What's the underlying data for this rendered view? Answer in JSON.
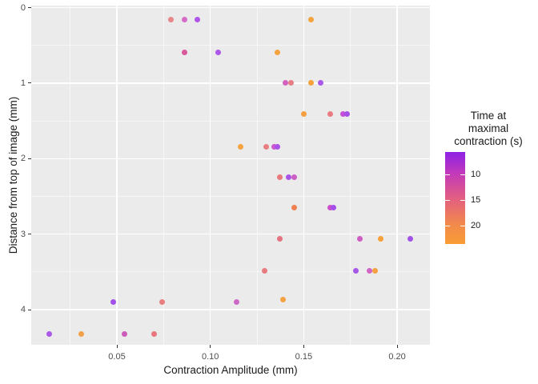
{
  "chart_data": {
    "type": "scatter",
    "title": "",
    "xlabel": "Contraction Amplitude (mm)",
    "ylabel": "Distance from top of image (mm)",
    "x_ticks": [
      0.05,
      0.1,
      0.15,
      0.2
    ],
    "x_tick_labels": [
      "0.05",
      "0.10",
      "0.15",
      "0.20"
    ],
    "x_minor_ticks": [
      0.025,
      0.075,
      0.125,
      0.175
    ],
    "y_ticks": [
      0,
      1,
      2,
      3,
      4
    ],
    "y_tick_labels": [
      "0",
      "1",
      "2",
      "3",
      "4"
    ],
    "y_minor_ticks": [
      0.5,
      1.5,
      2.5,
      3.5
    ],
    "xlim": [
      0.004,
      0.2175
    ],
    "ylim": [
      -0.03,
      4.47
    ],
    "y_axis_reversed": true,
    "grid": {
      "major": true,
      "minor": true
    },
    "legend_position": "right",
    "panel_background": "#ebebeb",
    "gridline_color": "#ffffff",
    "color_scale": {
      "title_lines": [
        "Time at",
        "maximal",
        "contraction (s)"
      ],
      "tick_values": [
        10,
        15,
        20
      ],
      "tick_labels": [
        "10",
        "15",
        "20"
      ],
      "domain": [
        5.6,
        23.6
      ],
      "gradient_stops": [
        {
          "pos": 0.0,
          "color": "#8e22e6"
        },
        {
          "pos": 0.24,
          "color": "#c43ab8"
        },
        {
          "pos": 0.52,
          "color": "#e4617e"
        },
        {
          "pos": 0.8,
          "color": "#f28b49"
        },
        {
          "pos": 1.0,
          "color": "#f99c35"
        }
      ]
    },
    "points": [
      {
        "x": 0.079,
        "y": 0.16,
        "time_s": 16,
        "color": "#e8868a"
      },
      {
        "x": 0.086,
        "y": 0.16,
        "time_s": 11,
        "color": "#d46cc8"
      },
      {
        "x": 0.093,
        "y": 0.16,
        "time_s": 8,
        "color": "#af55e8"
      },
      {
        "x": 0.154,
        "y": 0.16,
        "time_s": 21,
        "color": "#f4a33e"
      },
      {
        "x": 0.086,
        "y": 0.59,
        "time_s": 13,
        "color": "#d8589c"
      },
      {
        "x": 0.104,
        "y": 0.59,
        "time_s": 8,
        "color": "#ad58e8"
      },
      {
        "x": 0.136,
        "y": 0.59,
        "time_s": 21,
        "color": "#f4a340"
      },
      {
        "x": 0.14,
        "y": 1.0,
        "time_s": 11,
        "color": "#d362be"
      },
      {
        "x": 0.143,
        "y": 1.0,
        "time_s": 16,
        "color": "#e87e85"
      },
      {
        "x": 0.154,
        "y": 1.0,
        "time_s": 21,
        "color": "#f5a23c"
      },
      {
        "x": 0.159,
        "y": 1.0,
        "time_s": 8,
        "color": "#aa58e8"
      },
      {
        "x": 0.15,
        "y": 1.41,
        "time_s": 21,
        "color": "#f5a040"
      },
      {
        "x": 0.164,
        "y": 1.41,
        "time_s": 16,
        "color": "#e87c82"
      },
      {
        "x": 0.171,
        "y": 1.41,
        "time_s": 10,
        "color": "#c44fd8"
      },
      {
        "x": 0.173,
        "y": 1.41,
        "time_s": 8,
        "color": "#a64fe8"
      },
      {
        "x": 0.116,
        "y": 1.84,
        "time_s": 21,
        "color": "#f5a33e"
      },
      {
        "x": 0.13,
        "y": 1.84,
        "time_s": 16,
        "color": "#e87e81"
      },
      {
        "x": 0.134,
        "y": 1.84,
        "time_s": 10,
        "color": "#ca58ce"
      },
      {
        "x": 0.136,
        "y": 1.84,
        "time_s": 8,
        "color": "#ab52e8"
      },
      {
        "x": 0.137,
        "y": 2.25,
        "time_s": 16,
        "color": "#e87a7e"
      },
      {
        "x": 0.142,
        "y": 2.25,
        "time_s": 8,
        "color": "#a855e8"
      },
      {
        "x": 0.145,
        "y": 2.25,
        "time_s": 11,
        "color": "#cc5ec6"
      },
      {
        "x": 0.145,
        "y": 2.65,
        "time_s": 19,
        "color": "#ef8051"
      },
      {
        "x": 0.164,
        "y": 2.65,
        "time_s": 10,
        "color": "#cb4fc9"
      },
      {
        "x": 0.166,
        "y": 2.65,
        "time_s": 8,
        "color": "#a44fe8"
      },
      {
        "x": 0.137,
        "y": 3.06,
        "time_s": 15,
        "color": "#e4737f"
      },
      {
        "x": 0.18,
        "y": 3.06,
        "time_s": 11,
        "color": "#cf5cc2"
      },
      {
        "x": 0.191,
        "y": 3.06,
        "time_s": 21,
        "color": "#f7a03a"
      },
      {
        "x": 0.207,
        "y": 3.06,
        "time_s": 8,
        "color": "#a252e8"
      },
      {
        "x": 0.129,
        "y": 3.49,
        "time_s": 16,
        "color": "#e87b80"
      },
      {
        "x": 0.178,
        "y": 3.49,
        "time_s": 8,
        "color": "#a757e8"
      },
      {
        "x": 0.185,
        "y": 3.49,
        "time_s": 11,
        "color": "#d065c6"
      },
      {
        "x": 0.188,
        "y": 3.49,
        "time_s": 21,
        "color": "#f5a041"
      },
      {
        "x": 0.048,
        "y": 3.9,
        "time_s": 8,
        "color": "#a251e8"
      },
      {
        "x": 0.074,
        "y": 3.9,
        "time_s": 16,
        "color": "#e97d80"
      },
      {
        "x": 0.114,
        "y": 3.9,
        "time_s": 11,
        "color": "#cc69c7"
      },
      {
        "x": 0.139,
        "y": 3.87,
        "time_s": 21,
        "color": "#f5a240"
      },
      {
        "x": 0.014,
        "y": 4.32,
        "time_s": 8,
        "color": "#aa58e8"
      },
      {
        "x": 0.031,
        "y": 4.32,
        "time_s": 21,
        "color": "#f2a14a"
      },
      {
        "x": 0.054,
        "y": 4.32,
        "time_s": 10,
        "color": "#cb5db9"
      },
      {
        "x": 0.07,
        "y": 4.32,
        "time_s": 16,
        "color": "#e8767d"
      }
    ]
  }
}
